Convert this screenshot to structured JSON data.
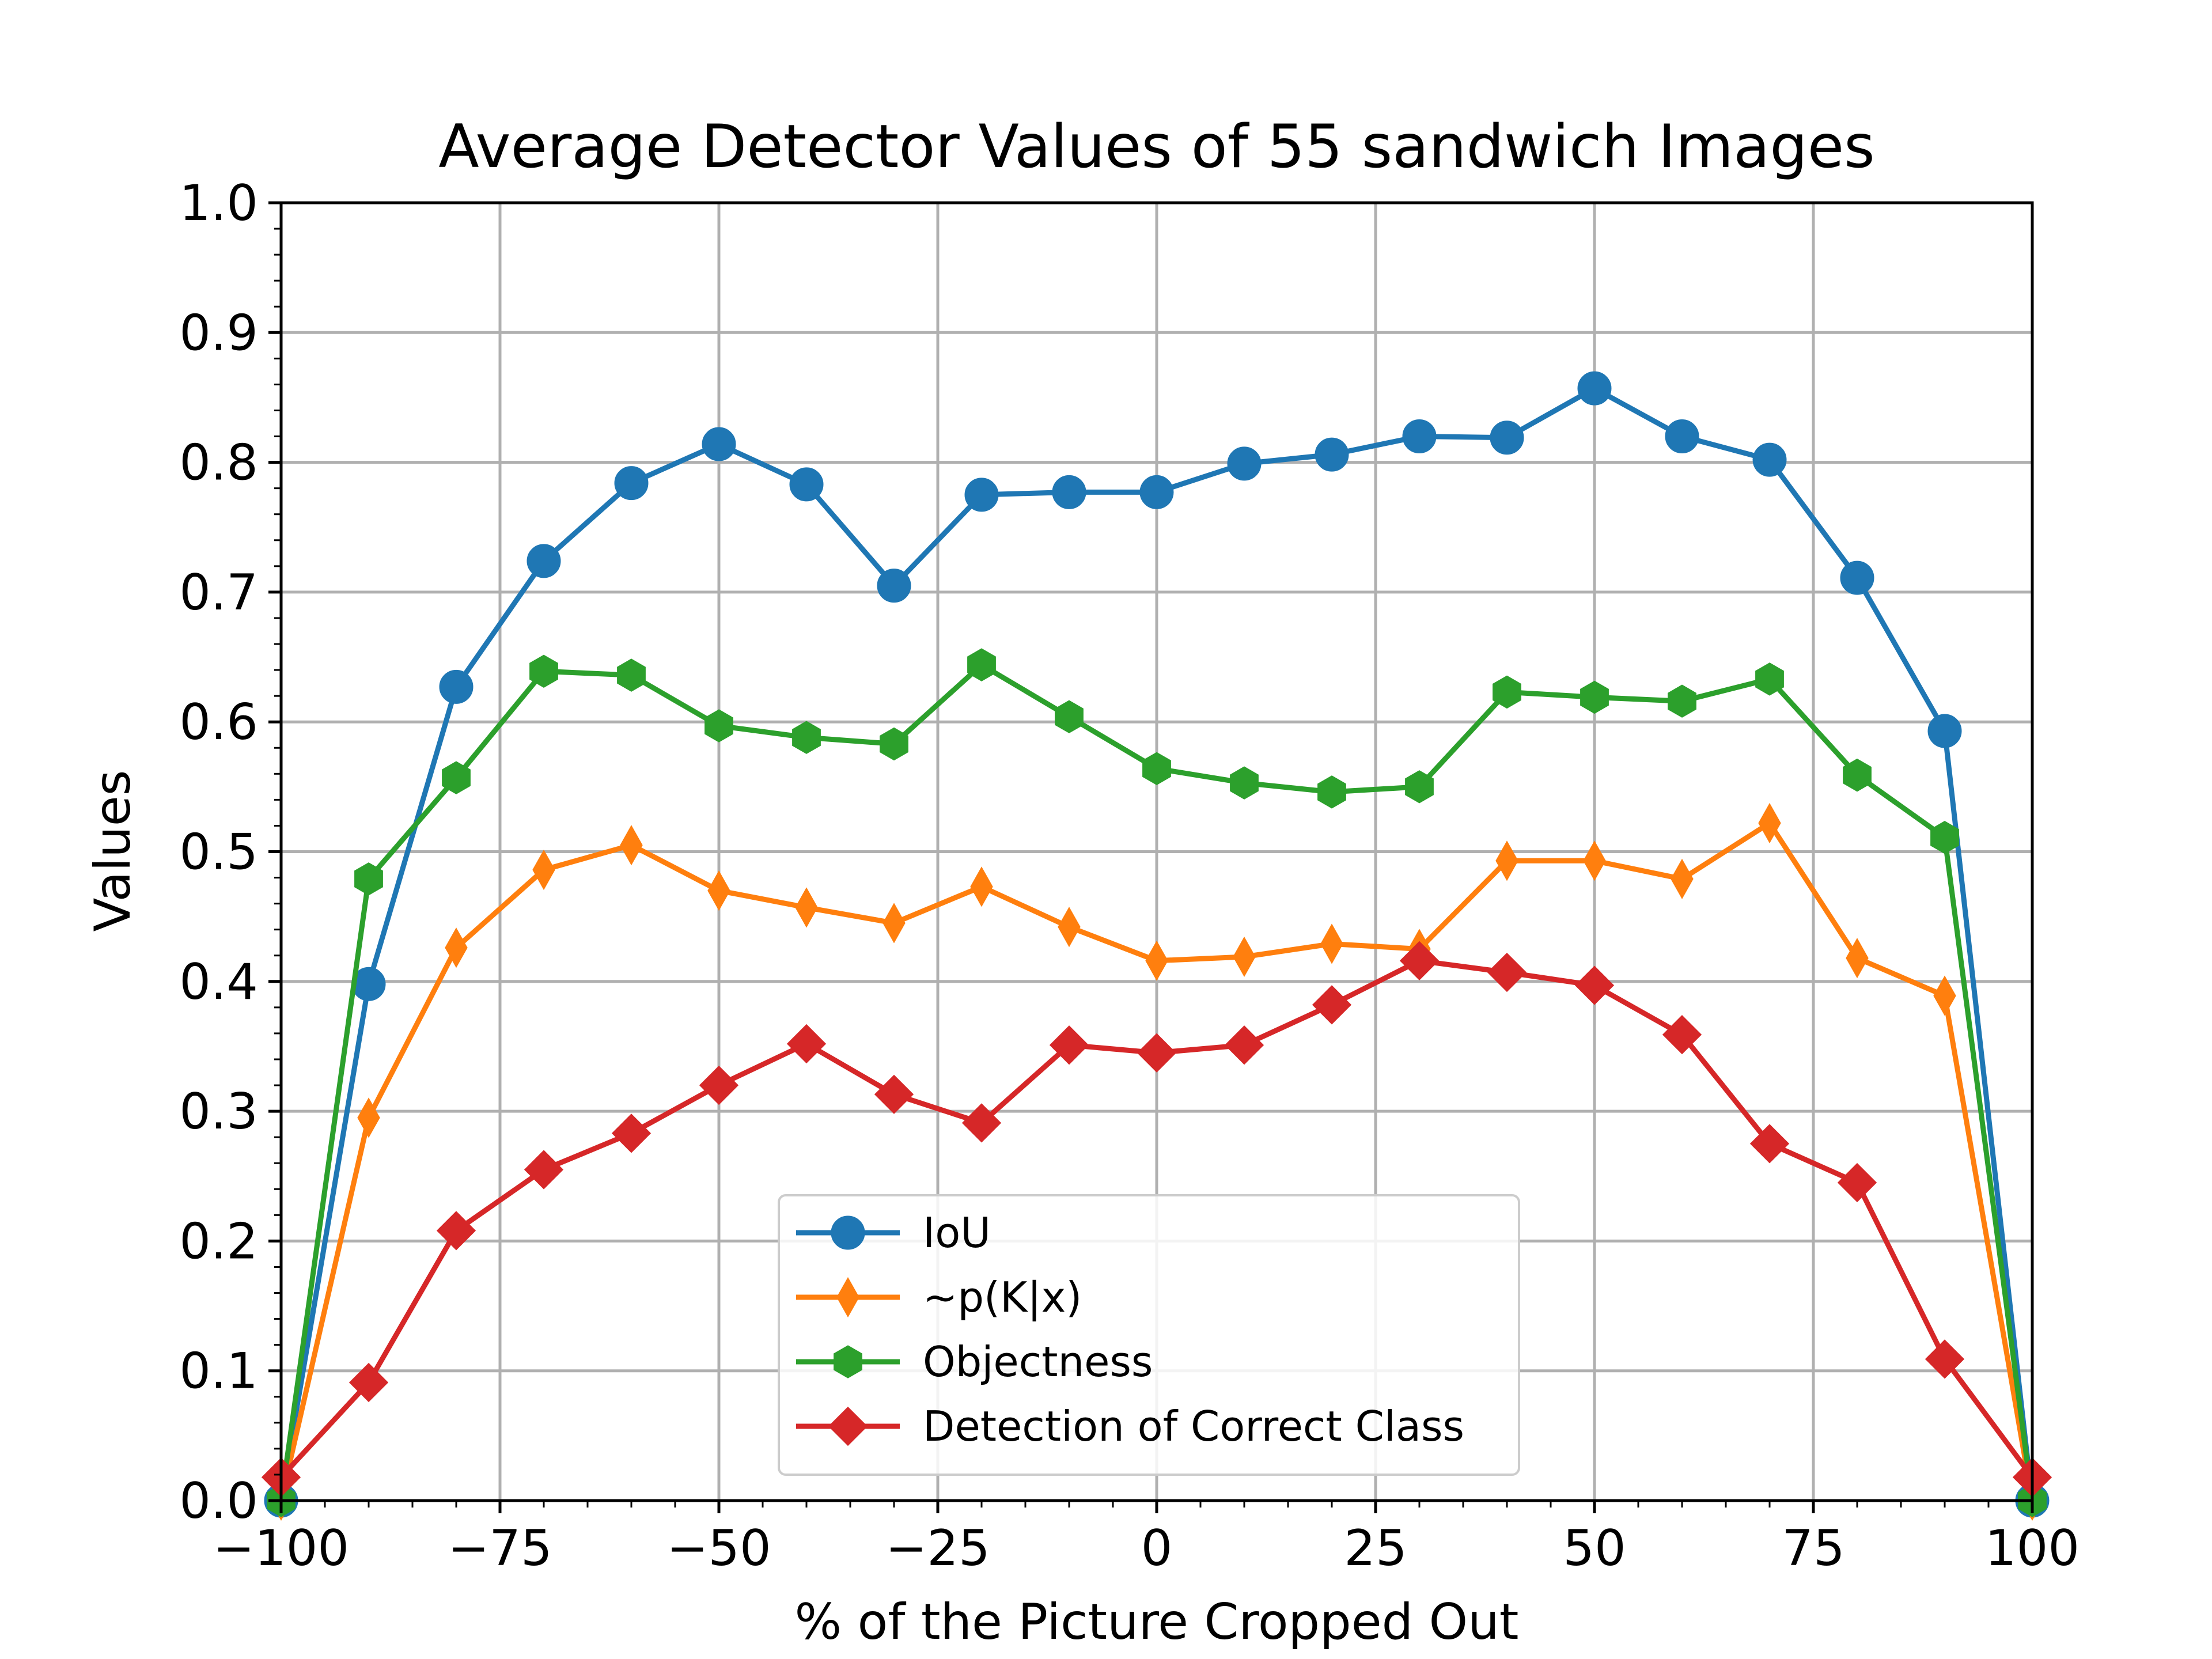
{
  "chart_data": {
    "type": "line",
    "title": "Average Detector Values of 55 sandwich Images",
    "xlabel": "% of the Picture Cropped Out",
    "ylabel": "Values",
    "xlim": [
      -100,
      100
    ],
    "ylim": [
      0.0,
      1.0
    ],
    "x_ticks": [
      -100,
      -75,
      -50,
      -25,
      0,
      25,
      50,
      75,
      100
    ],
    "x_tick_labels": [
      "−100",
      "−75",
      "−50",
      "−25",
      "0",
      "25",
      "50",
      "75",
      "100"
    ],
    "y_ticks": [
      0.0,
      0.1,
      0.2,
      0.3,
      0.4,
      0.5,
      0.6,
      0.7,
      0.8,
      0.9,
      1.0
    ],
    "y_tick_labels": [
      "0.0",
      "0.1",
      "0.2",
      "0.3",
      "0.4",
      "0.5",
      "0.6",
      "0.7",
      "0.8",
      "0.9",
      "1.0"
    ],
    "grid": true,
    "legend_position": "lower-center",
    "x": [
      -100,
      -90,
      -80,
      -70,
      -60,
      -50,
      -40,
      -30,
      -20,
      -10,
      0,
      10,
      20,
      30,
      40,
      50,
      60,
      70,
      80,
      90,
      100
    ],
    "series": [
      {
        "name": "IoU",
        "color": "#1f77b4",
        "marker": "circle",
        "values": [
          0.0,
          0.398,
          0.627,
          0.724,
          0.784,
          0.814,
          0.783,
          0.705,
          0.775,
          0.777,
          0.777,
          0.799,
          0.806,
          0.82,
          0.819,
          0.857,
          0.82,
          0.802,
          0.711,
          0.593,
          0.0
        ]
      },
      {
        "name": "~p(K|x)",
        "color": "#ff7f0e",
        "marker": "thin-diamond",
        "values": [
          0.0,
          0.295,
          0.426,
          0.486,
          0.505,
          0.47,
          0.457,
          0.445,
          0.473,
          0.442,
          0.416,
          0.419,
          0.429,
          0.425,
          0.493,
          0.493,
          0.479,
          0.522,
          0.418,
          0.389,
          0.0
        ]
      },
      {
        "name": "Objectness",
        "color": "#2ca02c",
        "marker": "hexagon",
        "values": [
          0.0,
          0.479,
          0.557,
          0.639,
          0.636,
          0.597,
          0.588,
          0.583,
          0.644,
          0.604,
          0.564,
          0.553,
          0.546,
          0.55,
          0.623,
          0.619,
          0.616,
          0.633,
          0.559,
          0.511,
          0.0
        ]
      },
      {
        "name": "Detection of Correct Class",
        "color": "#d62728",
        "marker": "diamond",
        "values": [
          0.018,
          0.091,
          0.208,
          0.255,
          0.283,
          0.32,
          0.352,
          0.313,
          0.291,
          0.351,
          0.345,
          0.351,
          0.382,
          0.416,
          0.407,
          0.397,
          0.359,
          0.275,
          0.245,
          0.109,
          0.018
        ]
      }
    ]
  }
}
